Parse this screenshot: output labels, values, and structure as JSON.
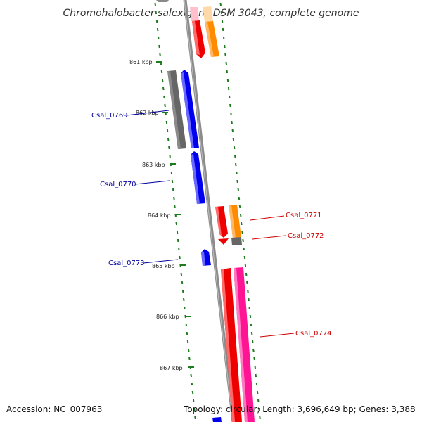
{
  "title": "Chromohalobacter salexigens DSM 3043, complete genome",
  "footer": {
    "accession": "Accession: NC_007963",
    "summary": "Topology: circular; Length: 3,696,649 bp; Genes: 3,388"
  },
  "colors": {
    "axis": "#8c8c8c",
    "ticks": "#1e7b1e",
    "forward_label": "#cc0000",
    "reverse_label": "#00009e",
    "gene_blue": "#0000ee",
    "gene_red": "#ee0000",
    "gene_orange": "#ff8c00",
    "gene_gray": "#666666",
    "gene_pink": "#ff1493",
    "gene_pale_pink": "#ffc0cb",
    "gene_pale_orange": "#ffd9a8"
  },
  "kbp_labels": [
    "861 kbp",
    "862 kbp",
    "863 kbp",
    "864 kbp",
    "865 kbp",
    "866 kbp",
    "867 kbp"
  ],
  "gene_labels": [
    {
      "text": "Csal_0769",
      "strand": "reverse"
    },
    {
      "text": "Csal_0770",
      "strand": "reverse"
    },
    {
      "text": "Csal_0771",
      "strand": "forward"
    },
    {
      "text": "Csal_0772",
      "strand": "forward"
    },
    {
      "text": "Csal_0773",
      "strand": "reverse"
    },
    {
      "text": "Csal_0774",
      "strand": "forward"
    }
  ]
}
